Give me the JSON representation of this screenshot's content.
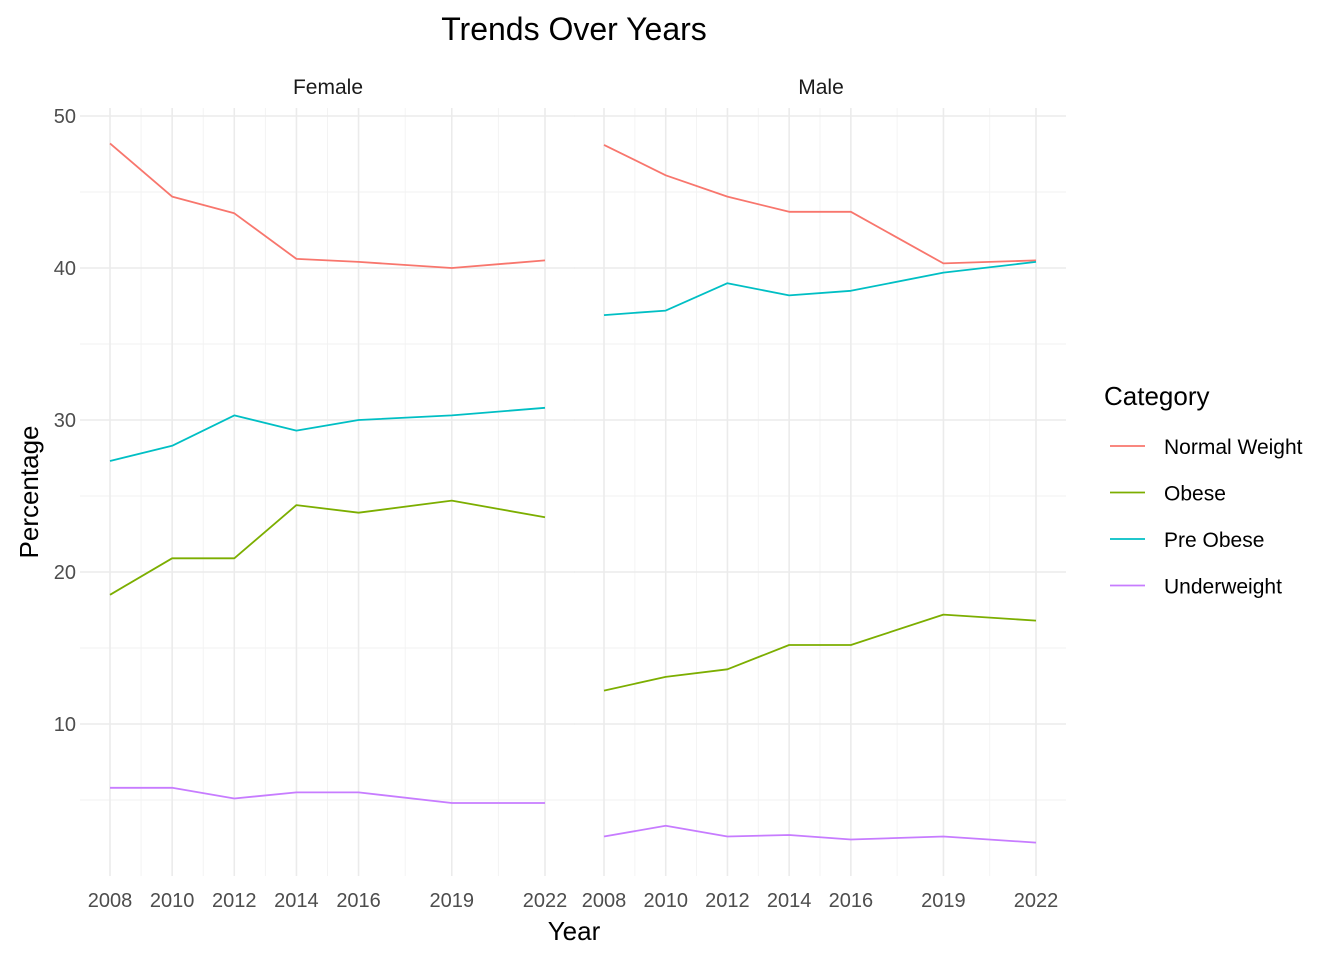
{
  "chart_data": {
    "type": "line",
    "title": "Trends Over Years",
    "xlabel": "Year",
    "ylabel": "Percentage",
    "x": [
      2008,
      2010,
      2012,
      2014,
      2016,
      2019,
      2022
    ],
    "x_tick_labels": [
      "2008",
      "2010",
      "2012",
      "2014",
      "2016",
      "2019",
      "2022"
    ],
    "y_ticks": [
      10,
      20,
      30,
      40,
      50
    ],
    "ylim": [
      1.8,
      50.8
    ],
    "xlim": [
      2008,
      2022
    ],
    "grid": true,
    "legend": {
      "title": "Category",
      "position": "right",
      "items": [
        {
          "label": "Normal Weight",
          "color": "#F8766D"
        },
        {
          "label": "Obese",
          "color": "#7CAE00"
        },
        {
          "label": "Pre Obese",
          "color": "#00BFC4"
        },
        {
          "label": "Underweight",
          "color": "#C77CFF"
        }
      ]
    },
    "facets": [
      {
        "label": "Female",
        "series": [
          {
            "name": "Normal Weight",
            "values": [
              48.2,
              44.7,
              43.6,
              40.6,
              40.4,
              40.0,
              40.5
            ]
          },
          {
            "name": "Obese",
            "values": [
              18.5,
              20.9,
              20.9,
              24.4,
              23.9,
              24.7,
              23.6
            ]
          },
          {
            "name": "Pre Obese",
            "values": [
              27.3,
              28.3,
              30.3,
              29.3,
              30.0,
              30.3,
              30.8
            ]
          },
          {
            "name": "Underweight",
            "values": [
              5.8,
              5.8,
              5.1,
              5.5,
              5.5,
              4.8,
              4.8
            ]
          }
        ]
      },
      {
        "label": "Male",
        "series": [
          {
            "name": "Normal Weight",
            "values": [
              48.1,
              46.1,
              44.7,
              43.7,
              43.7,
              40.3,
              40.5
            ]
          },
          {
            "name": "Obese",
            "values": [
              12.2,
              13.1,
              13.6,
              15.2,
              15.2,
              17.2,
              16.8
            ]
          },
          {
            "name": "Pre Obese",
            "values": [
              36.9,
              37.2,
              39.0,
              38.2,
              38.5,
              39.7,
              40.4
            ]
          },
          {
            "name": "Underweight",
            "values": [
              2.6,
              3.3,
              2.6,
              2.7,
              2.4,
              2.6,
              2.2
            ]
          }
        ]
      }
    ]
  }
}
